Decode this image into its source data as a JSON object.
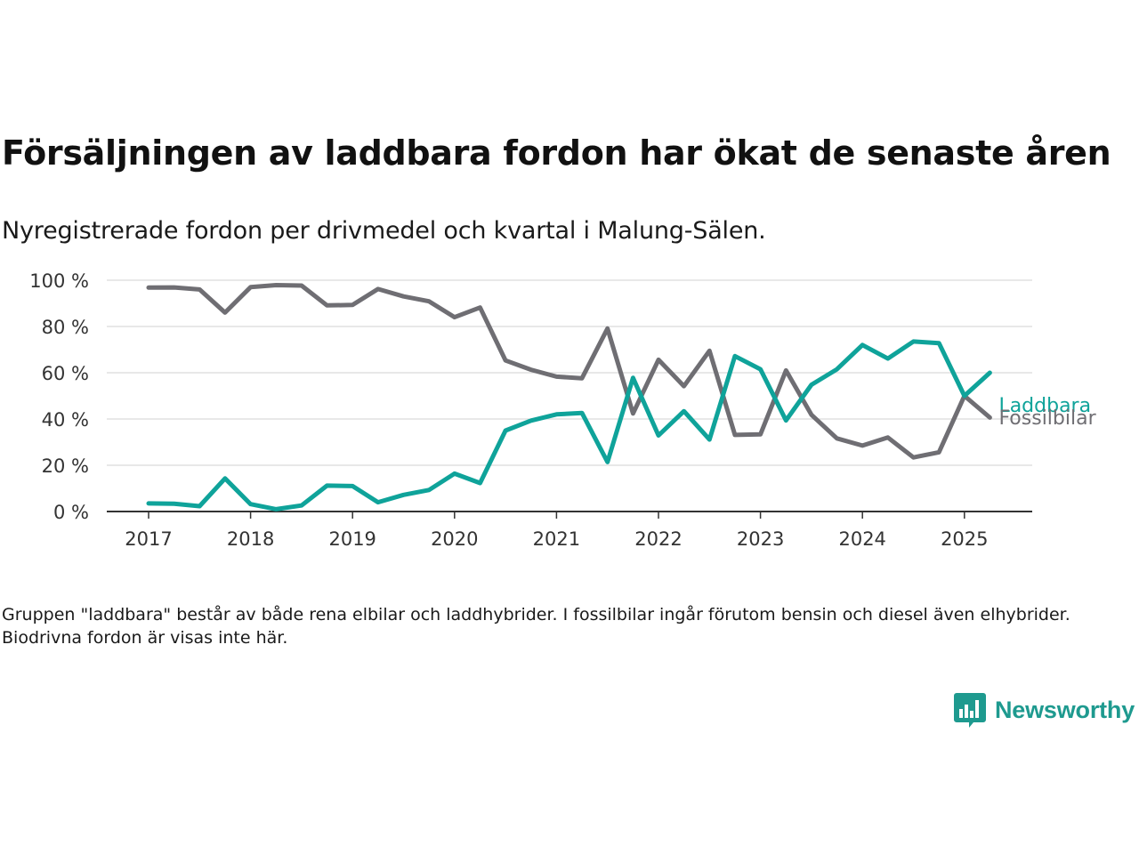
{
  "title": "Försäljningen av laddbara fordon har ökat de senaste åren",
  "subtitle": "Nyregistrerade fordon per drivmedel och kvartal i Malung-Sälen.",
  "note": "Gruppen \"laddbara\" består av både rena elbilar och laddhybrider. I fossilbilar ingår förutom bensin och diesel även elhybrider. Biodrivna fordon är visas inte här.",
  "brand": {
    "name": "Newsworthy",
    "icon": "newsworthy-logo-icon",
    "color": "#1e9a8f"
  },
  "chart_data": {
    "type": "line",
    "title": "Försäljningen av laddbara fordon har ökat de senaste åren",
    "subtitle": "Nyregistrerade fordon per drivmedel och kvartal i Malung-Sälen.",
    "xlabel": "",
    "ylabel": "",
    "x": [
      "2017 Q1",
      "2017 Q2",
      "2017 Q3",
      "2017 Q4",
      "2018 Q1",
      "2018 Q2",
      "2018 Q3",
      "2018 Q4",
      "2019 Q1",
      "2019 Q2",
      "2019 Q3",
      "2019 Q4",
      "2020 Q1",
      "2020 Q2",
      "2020 Q3",
      "2020 Q4",
      "2021 Q1",
      "2021 Q2",
      "2021 Q3",
      "2021 Q4",
      "2022 Q1",
      "2022 Q2",
      "2022 Q3",
      "2022 Q4",
      "2023 Q1",
      "2023 Q2",
      "2023 Q3",
      "2023 Q4",
      "2024 Q1",
      "2024 Q2",
      "2024 Q3",
      "2024 Q4",
      "2025 Q1",
      "2025 Q2"
    ],
    "x_ticks": [
      "2017",
      "2018",
      "2019",
      "2020",
      "2021",
      "2022",
      "2023",
      "2024",
      "2025"
    ],
    "y_ticks": [
      "0 %",
      "20 %",
      "40 %",
      "60 %",
      "80 %",
      "100 %"
    ],
    "ylim": [
      0,
      100
    ],
    "grid": "horizontal",
    "legend": "direct labels at line ends",
    "series": [
      {
        "name": "Laddbara",
        "color": "#0fa39a",
        "values": [
          3.5,
          3.4,
          2.3,
          14.3,
          3.2,
          1.0,
          2.6,
          11.2,
          11.0,
          4.0,
          7.2,
          9.3,
          16.4,
          12.3,
          35.0,
          39.3,
          42.0,
          42.6,
          21.4,
          57.8,
          32.9,
          43.4,
          31.1,
          67.2,
          61.5,
          39.4,
          54.8,
          61.5,
          72.0,
          66.1,
          73.5,
          72.8,
          50.0,
          60.0
        ]
      },
      {
        "name": "Fossilbilar",
        "color": "#6f6e73",
        "values": [
          96.8,
          96.9,
          96.0,
          86.0,
          97.0,
          97.9,
          97.7,
          89.1,
          89.3,
          96.2,
          93.0,
          90.9,
          84.0,
          88.2,
          65.3,
          61.3,
          58.3,
          57.6,
          79.1,
          42.4,
          65.6,
          54.2,
          69.5,
          33.1,
          33.4,
          61.0,
          41.8,
          31.6,
          28.5,
          32.0,
          23.4,
          25.6,
          50.0,
          40.6
        ]
      }
    ]
  }
}
